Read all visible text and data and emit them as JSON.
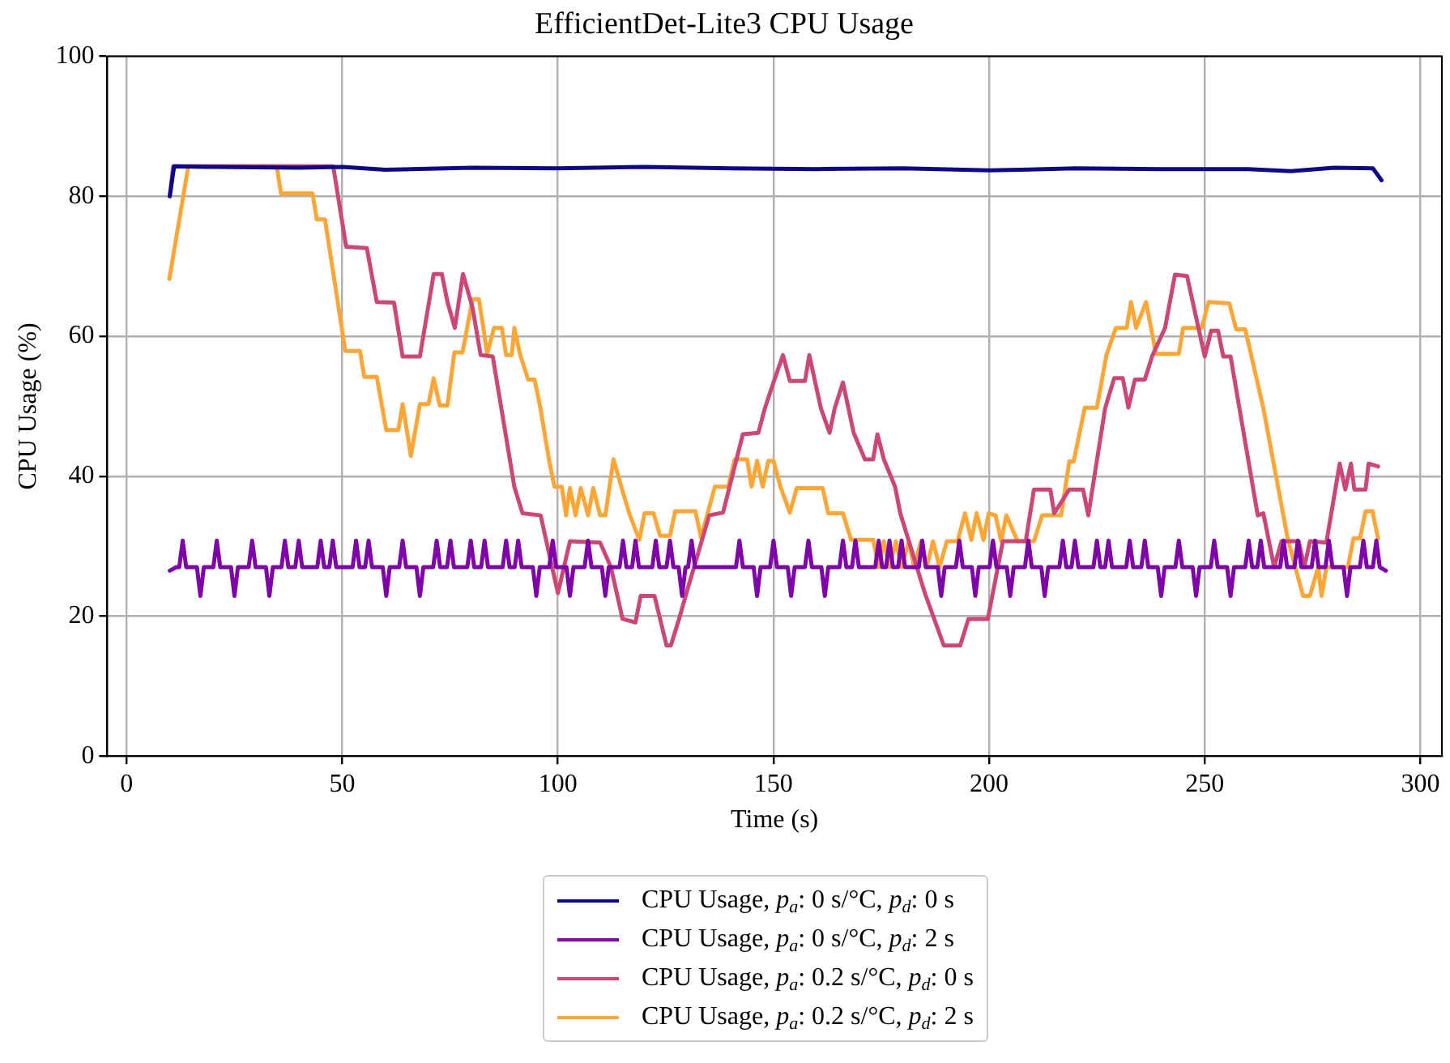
{
  "chart_data": {
    "type": "line",
    "title": "EfficientDet-Lite3 CPU Usage",
    "xlabel": "Time (s)",
    "ylabel": "CPU Usage (%)",
    "xlim": [
      -4.5,
      305
    ],
    "xticks": [
      0,
      50,
      100,
      150,
      200,
      250,
      300
    ],
    "ylim": [
      0,
      100
    ],
    "yticks": [
      0,
      20,
      40,
      60,
      80,
      100
    ],
    "grid": true,
    "legend": "bottom",
    "marker": "none",
    "line_style": "solid",
    "series": [
      {
        "name": "CPU Usage, p$_{a}$: 0 s/°C, p$_{d}$: 0 s",
        "color": "#0d0887",
        "x": [
          10,
          11,
          20,
          40,
          50,
          60,
          80,
          100,
          120,
          140,
          160,
          180,
          200,
          220,
          240,
          260,
          270,
          280,
          289,
          291
        ],
        "values": [
          80,
          84.3,
          84.2,
          84.1,
          84.2,
          83.8,
          84.1,
          84.0,
          84.2,
          84.0,
          83.9,
          84.0,
          83.7,
          84.0,
          83.9,
          83.9,
          83.6,
          84.1,
          84.0,
          82.3
        ]
      },
      {
        "name": "CPU Usage, p$_{a}$: 0 s/°C, p$_{d}$: 2 s",
        "color": "#7e03a8",
        "x": [
          10,
          11.5,
          12.2,
          13,
          13.8,
          16.3,
          17.1,
          17.9,
          20.1,
          20.9,
          21.7,
          24.2,
          25,
          25.8,
          28.3,
          29.1,
          29.9,
          32.3,
          33.1,
          33.9,
          35.9,
          36.7,
          37.5,
          39.1,
          39.9,
          40.7,
          44.2,
          45,
          45.8,
          47,
          47.8,
          48.6,
          52.4,
          53.2,
          54,
          55.3,
          56.1,
          56.9,
          59.4,
          60.2,
          61,
          63.2,
          64,
          64.8,
          67.2,
          68,
          68.8,
          71.1,
          71.9,
          72.7,
          74.3,
          75.1,
          75.9,
          79,
          79.8,
          80.6,
          82.2,
          83,
          83.8,
          87.2,
          88,
          88.8,
          90,
          90.8,
          91.6,
          94.2,
          95,
          95.8,
          98,
          98.8,
          99.6,
          102,
          102.8,
          103.6,
          106.2,
          107,
          107.8,
          110.2,
          111,
          111.8,
          114.3,
          115.1,
          115.9,
          117.2,
          118,
          118.8,
          121.9,
          122.7,
          123.5,
          125.2,
          126,
          126.8,
          128,
          128.8,
          129.6,
          130.2,
          131,
          131.8,
          141.3,
          142.1,
          142.9,
          145.4,
          146.2,
          147,
          149.2,
          150,
          150.8,
          153.3,
          154.1,
          154.9,
          157.3,
          158.1,
          158.9,
          161.1,
          161.9,
          162.7,
          165.3,
          166.1,
          166.9,
          168.2,
          169,
          169.8,
          173.6,
          174.4,
          175.2,
          176.1,
          176.9,
          177.7,
          178.9,
          179.7,
          180.5,
          183.7,
          184.5,
          185.3,
          188.1,
          188.9,
          189.7,
          192.3,
          193.1,
          193.9,
          196,
          196.8,
          197.6,
          200.1,
          200.9,
          201.7,
          204.1,
          204.9,
          205.7,
          208.3,
          209.1,
          209.9,
          212.1,
          212.9,
          213.7,
          216.3,
          217.1,
          217.9,
          219.1,
          219.9,
          220.7,
          224.2,
          225,
          225.8,
          226.9,
          227.7,
          228.5,
          231.8,
          232.6,
          233.4,
          235.3,
          236.1,
          236.9,
          239.1,
          239.9,
          240.7,
          243.2,
          244,
          244.8,
          247.2,
          248,
          248.8,
          251.4,
          252.2,
          253,
          255.2,
          256,
          256.8,
          259.4,
          260.2,
          261,
          262.2,
          263,
          263.8,
          267.5,
          268.3,
          269.1,
          270.8,
          271.6,
          272.4,
          274.8,
          275.6,
          276.4,
          278,
          278.8,
          279.6,
          282.2,
          283,
          283.8,
          286,
          286.8,
          287.6,
          289,
          289.8,
          290.6,
          292
        ],
        "values": [
          26.5,
          27,
          27,
          30.8,
          27,
          27,
          22.9,
          27,
          27,
          30.8,
          27,
          27,
          22.9,
          27,
          27,
          30.8,
          27,
          27,
          22.9,
          27,
          27,
          30.8,
          27,
          27,
          30.8,
          27,
          27,
          30.8,
          27,
          27,
          30.8,
          27,
          27,
          30.8,
          27,
          27,
          30.8,
          27,
          27,
          22.9,
          27,
          27,
          30.8,
          27,
          27,
          22.9,
          27,
          27,
          30.8,
          27,
          27,
          30.8,
          27,
          27,
          30.8,
          27,
          27,
          30.8,
          27,
          27,
          30.8,
          27,
          27,
          30.8,
          27,
          27,
          22.9,
          27,
          27,
          30.8,
          27,
          27,
          22.9,
          27,
          27,
          30.8,
          27,
          27,
          22.9,
          27,
          27,
          30.8,
          27,
          27,
          30.8,
          27,
          27,
          30.8,
          27,
          27,
          30.8,
          27,
          27,
          22.9,
          27,
          27,
          30.8,
          27,
          27,
          30.8,
          27,
          27,
          22.9,
          27,
          27,
          30.8,
          27,
          27,
          22.9,
          27,
          27,
          30.8,
          27,
          27,
          22.9,
          27,
          27,
          30.8,
          27,
          27,
          30.8,
          27,
          27,
          30.8,
          27,
          27,
          30.8,
          27,
          27,
          30.8,
          27,
          27,
          30.8,
          27,
          27,
          22.9,
          27,
          27,
          30.8,
          27,
          27,
          22.9,
          27,
          27,
          30.8,
          27,
          27,
          22.9,
          27,
          27,
          30.8,
          27,
          27,
          22.9,
          27,
          27,
          30.8,
          27,
          27,
          30.8,
          27,
          27,
          30.8,
          27,
          27,
          30.8,
          27,
          27,
          30.8,
          27,
          27,
          30.8,
          27,
          27,
          22.9,
          27,
          27,
          30.8,
          27,
          27,
          22.9,
          27,
          27,
          30.8,
          27,
          27,
          22.9,
          27,
          27,
          30.8,
          27,
          27,
          30.8,
          27,
          27,
          30.8,
          27,
          27,
          30.8,
          27,
          27,
          30.8,
          27,
          27,
          30.8,
          27,
          27,
          22.9,
          27,
          27,
          30.8,
          27,
          27,
          30.8,
          27,
          26.5
        ]
      },
      {
        "name": "CPU Usage, p$_{a}$: 0.2 s/°C, p$_{d}$: 0 s",
        "color": "#cc4778",
        "x": [
          10,
          10.8,
          47.9,
          50.9,
          55.7,
          58,
          62,
          64,
          68,
          71.2,
          73.1,
          74.4,
          76.1,
          78,
          80.2,
          82.1,
          84.9,
          89.9,
          91.8,
          96,
          100,
          102.8,
          109.8,
          112.3,
          115,
          118,
          119.2,
          122.4,
          125.2,
          126.2,
          128.1,
          130,
          135.1,
          138.3,
          142.9,
          146.5,
          148,
          150,
          152.2,
          153.8,
          157.3,
          158.3,
          161,
          163,
          164.2,
          166.1,
          168.6,
          171.2,
          173.1,
          174.1,
          175.6,
          178.2,
          179.4,
          185.1,
          189.5,
          193.3,
          195.2,
          199.7,
          203.2,
          208.5,
          210.4,
          214.2,
          215.1,
          218.6,
          221.8,
          223,
          226.9,
          229,
          231,
          232.3,
          233.8,
          236.1,
          237.9,
          240.8,
          243.1,
          245.9,
          250,
          251.5,
          253.1,
          254.3,
          256,
          262.3,
          263.6,
          266.1,
          267.8,
          271.8,
          273.1,
          274.4,
          278.2,
          281.3,
          282.6,
          283.9,
          284.7,
          287.3,
          288,
          290.2
        ],
        "values": [
          80,
          84.3,
          84.3,
          72.8,
          72.6,
          64.9,
          64.8,
          57.1,
          57.1,
          68.9,
          68.9,
          64.9,
          61.2,
          68.9,
          64.1,
          57.3,
          57.1,
          38.5,
          34.7,
          34.4,
          23.3,
          30.7,
          30.5,
          27,
          19.6,
          19.1,
          22.9,
          22.9,
          15.8,
          15.8,
          19.6,
          23.7,
          34.4,
          34.8,
          46,
          46.2,
          49.7,
          53.4,
          57.3,
          53.6,
          53.6,
          57.3,
          49.7,
          46.2,
          49.7,
          53.4,
          46.2,
          42.4,
          42.4,
          46,
          42.4,
          38.5,
          34.7,
          23.3,
          15.8,
          15.8,
          19.6,
          19.6,
          30.7,
          30.7,
          38.1,
          38.1,
          34.7,
          38.1,
          38.1,
          34.4,
          49.7,
          54,
          54,
          49.8,
          53.8,
          53.8,
          57.3,
          61.2,
          68.8,
          68.6,
          57.1,
          60.8,
          60.8,
          57.1,
          57.1,
          34.4,
          34.7,
          27,
          30.7,
          30.7,
          27,
          30.7,
          30.5,
          41.8,
          38.1,
          41.8,
          38.1,
          38.1,
          41.8,
          41.4
        ]
      },
      {
        "name": "CPU Usage, p$_{a}$: 0.2 s/°C, p$_{d}$: 2 s",
        "color": "#fca636",
        "x": [
          9.9,
          14.3,
          34.8,
          35.8,
          43.1,
          44.1,
          46,
          50.7,
          54.1,
          55.1,
          58,
          60.2,
          63,
          64,
          65.9,
          68,
          70,
          71.2,
          72.6,
          74.4,
          76,
          77.9,
          80.2,
          81.7,
          83.6,
          85.2,
          87,
          88,
          89.3,
          89.9,
          91.2,
          93.1,
          94.6,
          95.9,
          97.9,
          99.2,
          100.9,
          101.9,
          102.8,
          104.1,
          105.3,
          107,
          108.2,
          109.8,
          111,
          112.9,
          114.8,
          116.7,
          118.9,
          120.1,
          122.2,
          123.7,
          126,
          127.2,
          131.9,
          133.2,
          136.4,
          139.5,
          141,
          143.9,
          144.9,
          146.2,
          147.5,
          148.8,
          150,
          151.6,
          153.8,
          155.4,
          161.4,
          162.7,
          166.1,
          168,
          173.1,
          174.4,
          175.6,
          176.9,
          178.4,
          179.7,
          181.4,
          182.6,
          184.2,
          185.5,
          187,
          188.5,
          190.2,
          192.7,
          194.4,
          195.9,
          197.1,
          198.7,
          199.9,
          201.5,
          202.8,
          204,
          206.6,
          210.4,
          212.3,
          216.7,
          218.6,
          219.6,
          222.2,
          225,
          227.2,
          229.4,
          231.9,
          232.9,
          234.1,
          236.4,
          238.7,
          244,
          245,
          249.3,
          250.9,
          255.7,
          257.3,
          259.4,
          263.6,
          269.3,
          272.8,
          274.4,
          276.3,
          277.1,
          278.2,
          283.2,
          284.5,
          286,
          287.3,
          288.9,
          290.2
        ],
        "values": [
          68.2,
          84.3,
          84.3,
          80.4,
          80.4,
          76.7,
          76.7,
          57.9,
          57.9,
          54.2,
          54.2,
          46.6,
          46.6,
          50.3,
          42.9,
          50.3,
          50.3,
          54,
          50.1,
          50.1,
          57.7,
          57.7,
          65.3,
          65.3,
          57.5,
          61.2,
          61.2,
          57.3,
          57.3,
          61.2,
          57.5,
          53.8,
          53.8,
          49.9,
          42.5,
          38.5,
          38.5,
          34.4,
          38.3,
          34.4,
          38.3,
          34.4,
          38.3,
          34.4,
          34.4,
          42.4,
          38.3,
          34.4,
          30.9,
          34.7,
          34.7,
          31.5,
          31.5,
          35,
          35,
          31.2,
          38.5,
          38.5,
          42.4,
          42.4,
          38.5,
          42.2,
          38.5,
          42.2,
          42.2,
          38.5,
          34.8,
          38.3,
          38.3,
          34.7,
          34.7,
          30.9,
          30.9,
          27,
          30.7,
          27,
          30.7,
          27,
          30.7,
          27,
          30.7,
          27,
          30.7,
          27,
          30.7,
          30.7,
          34.7,
          30.9,
          34.7,
          30.9,
          34.7,
          34.4,
          30.7,
          34.4,
          30.7,
          30.7,
          34.4,
          34.4,
          42.1,
          42.1,
          49.8,
          49.8,
          57.3,
          61.2,
          61.2,
          64.9,
          61.2,
          64.9,
          57.5,
          57.5,
          61.2,
          61.2,
          64.9,
          64.7,
          61,
          61,
          49.7,
          30.9,
          22.9,
          22.9,
          27,
          22.9,
          27,
          27,
          31.1,
          31.1,
          35,
          35,
          31.1
        ]
      }
    ]
  }
}
